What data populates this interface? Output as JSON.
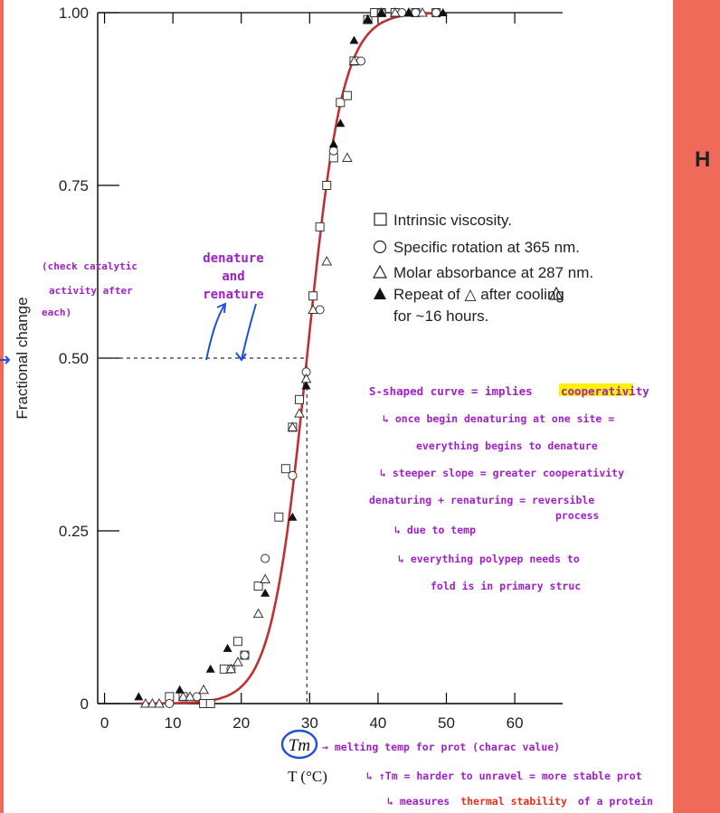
{
  "colors": {
    "curve": "#c03030",
    "annotation_purple": "#a020c8",
    "annotation_blue": "#2050d8",
    "annotation_red": "#e83020",
    "highlight": "#fff200",
    "slide_background": "#f06a5a"
  },
  "side_text": {
    "right_edge": "H"
  },
  "chart_data": {
    "type": "scatter",
    "xlabel": "T (°C)",
    "ylabel": "Fractional change",
    "xlim": [
      -1,
      67
    ],
    "ylim": [
      0,
      1.0
    ],
    "x_ticks": [
      "0",
      "10",
      "20",
      "30",
      "40",
      "50",
      "60"
    ],
    "y_ticks": [
      "0",
      "0.25",
      "0.50",
      "0.75",
      "1.00"
    ],
    "tm_label": "Tm",
    "tm_value": 29.6,
    "legend_position": "right",
    "legend": [
      "Intrinsic viscosity.",
      "Specific rotation at 365 nm.",
      "Molar absorbance at 287 nm.",
      "Repeat of △ after cooling",
      "for ~16 hours."
    ],
    "series": [
      {
        "name": "Intrinsic viscosity.",
        "marker": "square",
        "x": [
          9.5,
          11.5,
          14.5,
          15.5,
          17.5,
          19.5,
          20.5,
          22.5,
          25.5,
          26.5,
          27.5,
          28.5,
          30.5,
          31.5,
          32.5,
          33.5,
          34.5,
          35.5,
          36.5,
          38.5,
          39.5,
          40.5,
          42.5,
          45.5,
          48.5
        ],
        "y": [
          0.01,
          0.01,
          0.0,
          0.0,
          0.05,
          0.09,
          0.07,
          0.17,
          0.27,
          0.34,
          0.4,
          0.44,
          0.59,
          0.69,
          0.75,
          0.79,
          0.87,
          0.88,
          0.93,
          0.99,
          1.0,
          1.0,
          1.0,
          1.0,
          1.0
        ]
      },
      {
        "name": "Specific rotation at 365 nm.",
        "marker": "circle",
        "x": [
          9.5,
          13.5,
          18.5,
          20.5,
          23.5,
          27.5,
          29.5,
          31.5,
          33.5,
          37.5,
          40.5,
          43.5,
          45.5,
          48.5
        ],
        "y": [
          0.0,
          0.01,
          0.05,
          0.07,
          0.21,
          0.33,
          0.48,
          0.57,
          0.8,
          0.93,
          1.0,
          1.0,
          1.0,
          1.0
        ]
      },
      {
        "name": "Molar absorbance at 287 nm.",
        "marker": "triangle",
        "x": [
          6.0,
          7.0,
          8.0,
          11.5,
          12.5,
          14.5,
          18.5,
          19.5,
          22.5,
          23.5,
          27.5,
          28.5,
          29.5,
          30.5,
          32.5,
          35.5,
          36.5,
          38.5,
          40.5,
          42.5,
          44.5,
          46.5
        ],
        "y": [
          0.0,
          0.0,
          0.0,
          0.01,
          0.01,
          0.02,
          0.05,
          0.06,
          0.13,
          0.18,
          0.4,
          0.42,
          0.47,
          0.57,
          0.64,
          0.79,
          0.93,
          0.99,
          1.0,
          1.0,
          1.0,
          1.0
        ]
      },
      {
        "name": "Repeat of △ after cooling",
        "marker": "filled-triangle",
        "x": [
          5.0,
          11.0,
          15.5,
          18.0,
          23.5,
          27.5,
          29.5,
          33.5,
          34.5,
          36.5,
          38.5,
          40.5,
          44.5,
          49.5
        ],
        "y": [
          0.01,
          0.02,
          0.05,
          0.08,
          0.16,
          0.27,
          0.46,
          0.81,
          0.84,
          0.96,
          0.99,
          1.0,
          1.0,
          1.0
        ]
      }
    ],
    "fitted_curve": {
      "type": "sigmoid",
      "midpoint": 29.6,
      "scale": 2.6
    }
  },
  "annotations": {
    "check": [
      "(check catalytic",
      "activity after",
      "each)"
    ],
    "denature": [
      "denature",
      "and",
      "renature"
    ],
    "s_curve": "S-shaped curve = implies",
    "coop_word": "cooperativity",
    "once": "↳ once begin denaturing at one site =",
    "everything": "everything begins to denature",
    "steeper": "↳ steeper slope = greater cooperativity",
    "reversible": "denaturing + renaturing = reversible",
    "process": "process",
    "due": "↳ due to temp",
    "needs": "↳ everything polypep needs to",
    "fold": "fold is in primary struc",
    "melting": "→ melting temp for prot (charac value)",
    "harder": "↳ ↑Tm = harder to unravel = more stable prot",
    "measures_prefix": "↳ measures",
    "measures_red": "thermal stability",
    "measures_suffix": "of a protein"
  }
}
